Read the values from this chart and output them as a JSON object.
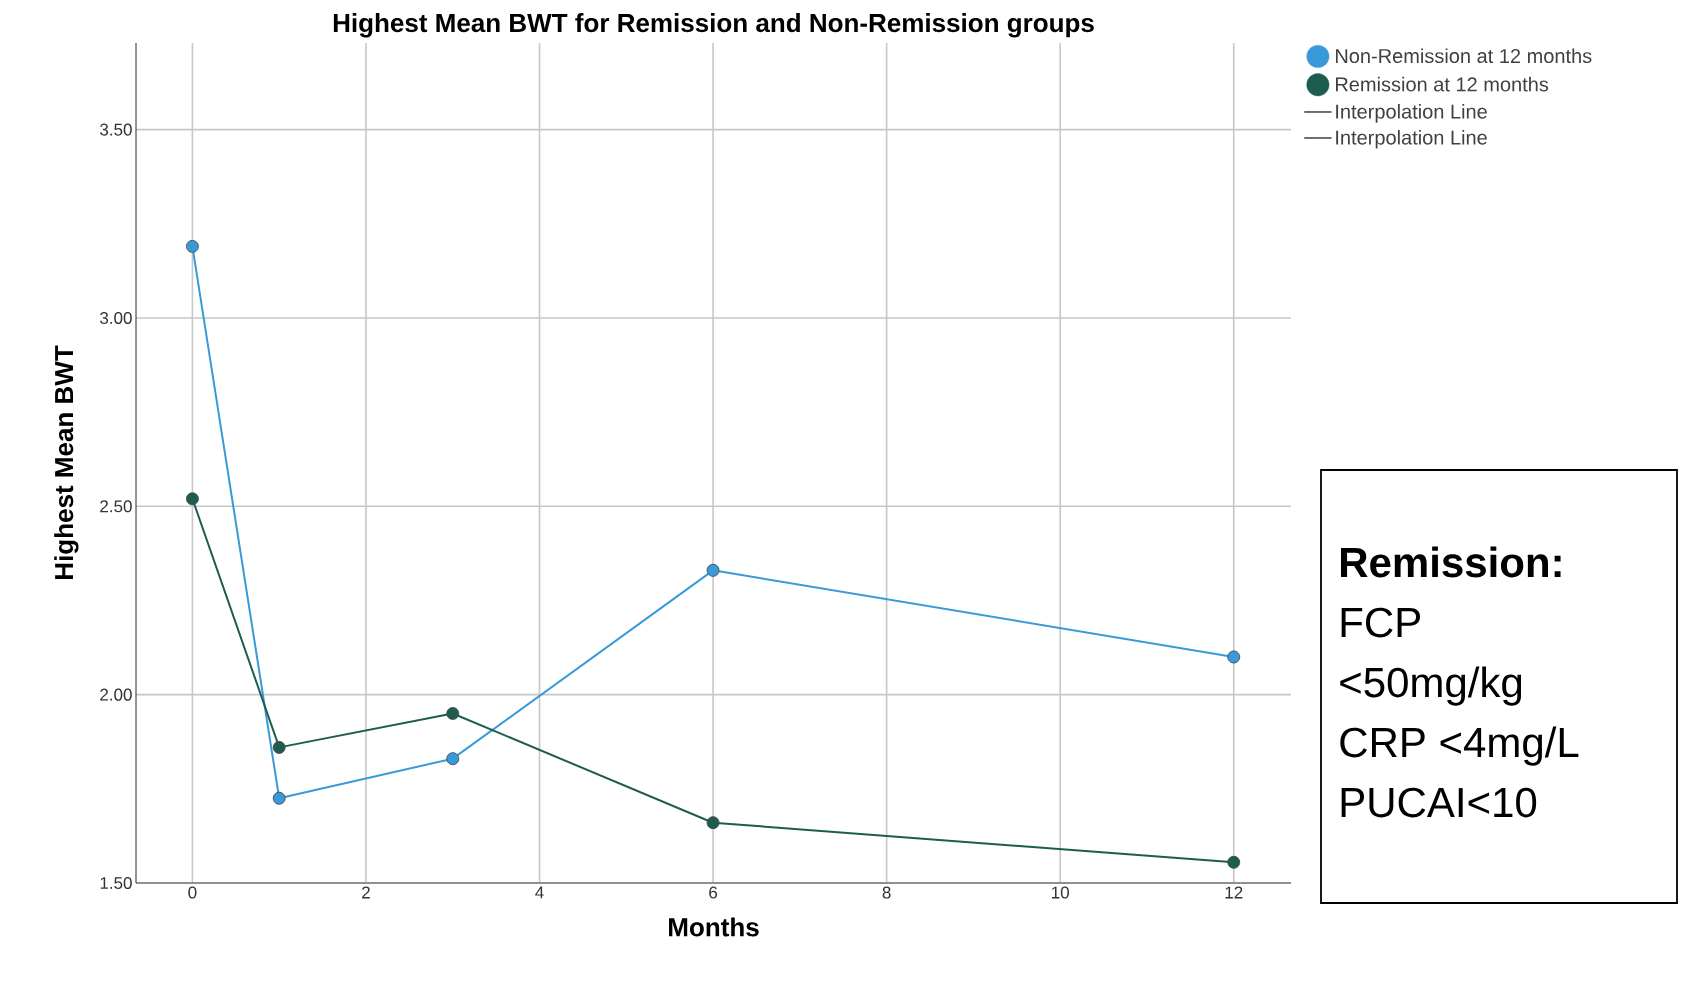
{
  "chart_data": {
    "type": "line",
    "title": "Highest Mean BWT for Remission and Non-Remission groups",
    "xlabel": "Months",
    "ylabel": "Highest Mean BWT",
    "series": [
      {
        "name": "Non-Remission at 12 months",
        "color": "#3a9ad9",
        "x": [
          0,
          1,
          3,
          6,
          12
        ],
        "values": [
          3.19,
          1.725,
          1.83,
          2.33,
          2.1
        ]
      },
      {
        "name": "Remission at 12 months",
        "color": "#1e5c50",
        "x": [
          0,
          1,
          3,
          6,
          12
        ],
        "values": [
          2.52,
          1.86,
          1.95,
          1.66,
          1.555
        ]
      }
    ],
    "xlim": [
      -0.65,
      12.66
    ],
    "ylim": [
      1.5,
      3.73
    ],
    "xticks": [
      0,
      2,
      4,
      6,
      8,
      10,
      12
    ],
    "yticks": [
      {
        "value": 1.5,
        "label": "1.50"
      },
      {
        "value": 2.0,
        "label": "2.00"
      },
      {
        "value": 2.5,
        "label": "2.50"
      },
      {
        "value": 3.0,
        "label": "3.00"
      },
      {
        "value": 3.5,
        "label": "3.50"
      }
    ],
    "grid": true,
    "legend": "top right",
    "marker": "circle",
    "line_style": "solid",
    "annotations": [
      "Interpolation Line",
      "Interpolation Line",
      "**Remission:**",
      "FCP",
      "<50mg/kg",
      "CRP <4mg/L",
      "PUCAI<10"
    ]
  }
}
